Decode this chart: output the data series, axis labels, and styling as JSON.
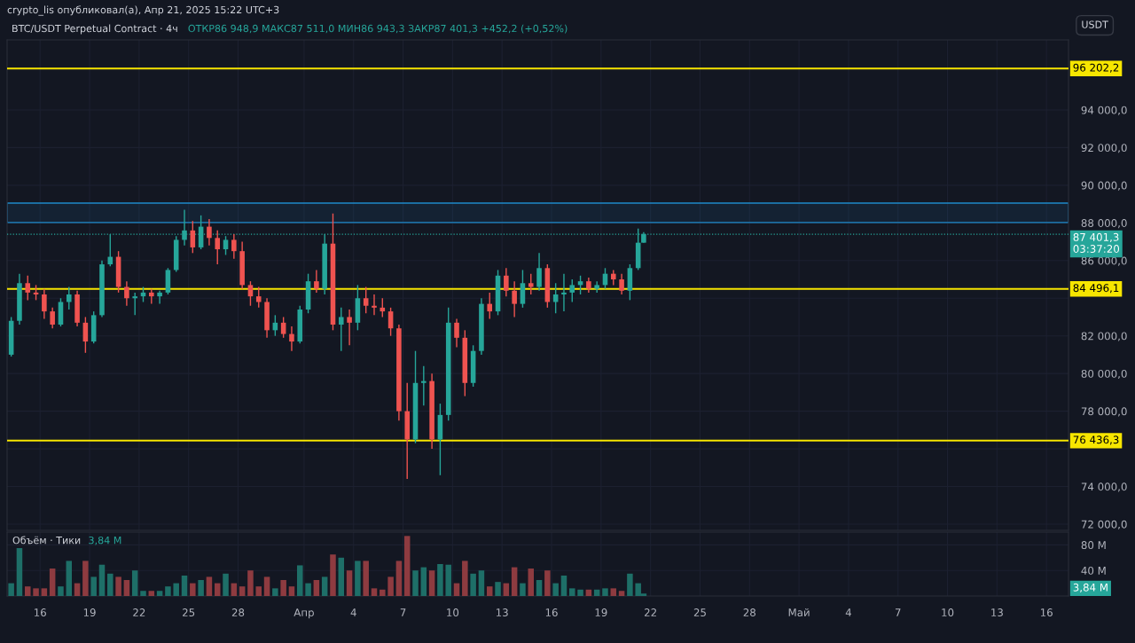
{
  "chart_data": [
    {
      "type": "candlestick",
      "title": "BTC/USDT Perpetual Contract · 4ч",
      "subtitle": "ОТКР86 948,9 МАКС87 511,0 МИН86 943,3 ЗАКР87 401,3 +452,2 (+0,52%)",
      "ylabel": "USDT",
      "annotations": [
        "crypto_lis опубликовал(а), Апр 21, 2025 15:22 UTC+3"
      ],
      "x": [
        "2025-03-14T06:00",
        "2025-03-14T18:00",
        "2025-03-15T06:00",
        "2025-03-15T18:00",
        "2025-03-16T06:00",
        "2025-03-16T18:00",
        "2025-03-17T06:00",
        "2025-03-17T18:00",
        "2025-03-18T06:00",
        "2025-03-18T18:00",
        "2025-03-19T06:00",
        "2025-03-19T18:00",
        "2025-03-20T06:00",
        "2025-03-20T18:00",
        "2025-03-21T06:00",
        "2025-03-21T18:00",
        "2025-03-22T06:00",
        "2025-03-22T18:00",
        "2025-03-23T06:00",
        "2025-03-23T18:00",
        "2025-03-24T06:00",
        "2025-03-24T18:00",
        "2025-03-25T06:00",
        "2025-03-25T18:00",
        "2025-03-26T06:00",
        "2025-03-26T18:00",
        "2025-03-27T06:00",
        "2025-03-27T18:00",
        "2025-03-28T06:00",
        "2025-03-28T18:00",
        "2025-03-29T06:00",
        "2025-03-29T18:00",
        "2025-03-30T06:00",
        "2025-03-30T18:00",
        "2025-03-31T06:00",
        "2025-03-31T18:00",
        "2025-04-01T06:00",
        "2025-04-01T18:00",
        "2025-04-02T06:00",
        "2025-04-02T18:00",
        "2025-04-03T06:00",
        "2025-04-03T18:00",
        "2025-04-04T06:00",
        "2025-04-04T18:00",
        "2025-04-05T06:00",
        "2025-04-05T18:00",
        "2025-04-06T06:00",
        "2025-04-06T18:00",
        "2025-04-07T06:00",
        "2025-04-07T18:00",
        "2025-04-08T06:00",
        "2025-04-08T18:00",
        "2025-04-09T06:00",
        "2025-04-09T18:00",
        "2025-04-10T06:00",
        "2025-04-10T18:00",
        "2025-04-11T06:00",
        "2025-04-11T18:00",
        "2025-04-12T06:00",
        "2025-04-12T18:00",
        "2025-04-13T06:00",
        "2025-04-13T18:00",
        "2025-04-14T06:00",
        "2025-04-14T18:00",
        "2025-04-15T06:00",
        "2025-04-15T18:00",
        "2025-04-16T06:00",
        "2025-04-16T18:00",
        "2025-04-17T06:00",
        "2025-04-17T18:00",
        "2025-04-18T06:00",
        "2025-04-18T18:00",
        "2025-04-19T06:00",
        "2025-04-19T18:00",
        "2025-04-20T06:00",
        "2025-04-20T18:00",
        "2025-04-21T06:00",
        "2025-04-21T14:00"
      ],
      "ohlc": [
        [
          81000,
          83000,
          80900,
          82800
        ],
        [
          82800,
          85300,
          82600,
          84800
        ],
        [
          84800,
          85200,
          83900,
          84300
        ],
        [
          84300,
          84700,
          83900,
          84200
        ],
        [
          84200,
          84500,
          82900,
          83300
        ],
        [
          83300,
          83500,
          82400,
          82600
        ],
        [
          82600,
          84000,
          82500,
          83800
        ],
        [
          83800,
          84600,
          83400,
          84200
        ],
        [
          84200,
          84400,
          82500,
          82700
        ],
        [
          82700,
          83000,
          81100,
          81700
        ],
        [
          81700,
          83300,
          81600,
          83100
        ],
        [
          83100,
          86000,
          83000,
          85800
        ],
        [
          85800,
          87400,
          85700,
          86200
        ],
        [
          86200,
          86500,
          84300,
          84600
        ],
        [
          84600,
          84900,
          83600,
          84000
        ],
        [
          84000,
          84300,
          83100,
          84100
        ],
        [
          84100,
          84600,
          83800,
          84300
        ],
        [
          84300,
          84500,
          83700,
          84100
        ],
        [
          84100,
          84400,
          83700,
          84300
        ],
        [
          84300,
          85600,
          84200,
          85500
        ],
        [
          85500,
          87300,
          85400,
          87100
        ],
        [
          87100,
          88700,
          86800,
          87600
        ],
        [
          87600,
          88100,
          86400,
          86700
        ],
        [
          86700,
          88400,
          86600,
          87800
        ],
        [
          87800,
          88200,
          86800,
          87200
        ],
        [
          87200,
          87600,
          85800,
          86600
        ],
        [
          86600,
          87300,
          86300,
          87100
        ],
        [
          87100,
          87400,
          86100,
          86500
        ],
        [
          86500,
          87000,
          84500,
          84700
        ],
        [
          84700,
          84900,
          83600,
          84100
        ],
        [
          84100,
          84600,
          83500,
          83800
        ],
        [
          83800,
          84000,
          81900,
          82300
        ],
        [
          82300,
          83100,
          82000,
          82700
        ],
        [
          82700,
          83000,
          81900,
          82100
        ],
        [
          82100,
          82500,
          81200,
          81700
        ],
        [
          81700,
          83600,
          81600,
          83400
        ],
        [
          83400,
          85300,
          83200,
          84900
        ],
        [
          84900,
          85500,
          84300,
          84500
        ],
        [
          84500,
          87400,
          84200,
          86900
        ],
        [
          86900,
          88500,
          82300,
          82600
        ],
        [
          82600,
          83500,
          81200,
          83000
        ],
        [
          83000,
          83400,
          81500,
          82700
        ],
        [
          82700,
          84700,
          82300,
          84000
        ],
        [
          84000,
          84600,
          83200,
          83600
        ],
        [
          83600,
          84200,
          83100,
          83500
        ],
        [
          83500,
          84000,
          83000,
          83300
        ],
        [
          83300,
          83500,
          82000,
          82400
        ],
        [
          82400,
          82600,
          77500,
          78000
        ],
        [
          78000,
          79500,
          74400,
          76500
        ],
        [
          76500,
          81200,
          76300,
          79500
        ],
        [
          79500,
          80400,
          78300,
          79600
        ],
        [
          79600,
          80000,
          76000,
          76500
        ],
        [
          76500,
          78400,
          74600,
          77800
        ],
        [
          77800,
          83500,
          77500,
          82700
        ],
        [
          82700,
          82900,
          81400,
          81900
        ],
        [
          81900,
          82300,
          78800,
          79500
        ],
        [
          79500,
          81500,
          79300,
          81200
        ],
        [
          81200,
          84000,
          81000,
          83700
        ],
        [
          83700,
          84300,
          82900,
          83300
        ],
        [
          83300,
          85500,
          83100,
          85200
        ],
        [
          85200,
          85600,
          84100,
          84400
        ],
        [
          84400,
          84900,
          83000,
          83700
        ],
        [
          83700,
          85500,
          83500,
          84800
        ],
        [
          84800,
          85300,
          84200,
          84600
        ],
        [
          84600,
          86400,
          84400,
          85600
        ],
        [
          85600,
          85800,
          83500,
          83800
        ],
        [
          83800,
          84800,
          83200,
          84200
        ],
        [
          84200,
          85300,
          83300,
          84300
        ],
        [
          84300,
          85000,
          83800,
          84700
        ],
        [
          84700,
          85200,
          84200,
          84900
        ],
        [
          84900,
          85100,
          84300,
          84500
        ],
        [
          84500,
          84900,
          84300,
          84700
        ],
        [
          84700,
          85600,
          84500,
          85300
        ],
        [
          85300,
          85500,
          84700,
          85000
        ],
        [
          85000,
          85300,
          84200,
          84400
        ],
        [
          84400,
          85800,
          83900,
          85600
        ],
        [
          85600,
          87700,
          85500,
          86948.9
        ],
        [
          86948.9,
          87511.0,
          86943.3,
          87401.3
        ]
      ],
      "xlim": [
        "2025-03-14T00:00",
        "2025-05-17T08:00"
      ],
      "xticks": [
        "2025-03-16",
        "2025-03-19",
        "2025-03-22",
        "2025-03-25",
        "2025-03-28",
        "2025-04-01",
        "2025-04-04",
        "2025-04-07",
        "2025-04-10",
        "2025-04-13",
        "2025-04-16",
        "2025-04-19",
        "2025-04-22",
        "2025-04-25",
        "2025-04-28",
        "2025-05-01",
        "2025-05-04",
        "2025-05-07",
        "2025-05-10",
        "2025-05-13",
        "2025-05-16"
      ],
      "ylim": [
        71670,
        97720
      ],
      "yticks": [
        {
          "value": 72000,
          "label": "72 000,0"
        },
        {
          "value": 74000,
          "label": "74 000,0"
        },
        {
          "value": 76000,
          "label": null
        },
        {
          "value": 78000,
          "label": "78 000,0"
        },
        {
          "value": 80000,
          "label": "80 000,0"
        },
        {
          "value": 82000,
          "label": "82 000,0"
        },
        {
          "value": 84000,
          "label": null
        },
        {
          "value": 86000,
          "label": "86 000,0"
        },
        {
          "value": 88000,
          "label": "88 000,0"
        },
        {
          "value": 90000,
          "label": "90 000,0"
        },
        {
          "value": 92000,
          "label": "92 000,0"
        },
        {
          "value": 94000,
          "label": "94 000,0"
        }
      ],
      "ref_lines": [
        {
          "axis": "y",
          "value": 96202.2,
          "label": "96 202,2",
          "color": "#f7e600",
          "line_style": "solid"
        },
        {
          "axis": "y",
          "value": 84496.1,
          "label": "84 496,1",
          "color": "#f7e600",
          "line_style": "solid"
        },
        {
          "axis": "y",
          "value": 76436.3,
          "label": "76 436,3",
          "color": "#f7e600",
          "line_style": "solid"
        },
        {
          "axis": "y",
          "value": 87401.3,
          "label": "87 401,3\n03:37:20",
          "color": "#26a69a",
          "line_style": "dotted"
        }
      ],
      "bands": [
        {
          "axis": "y",
          "from": 88020,
          "to": 89050,
          "color": "#1e88c8"
        }
      ],
      "colors": [
        "#26a69a",
        "#26a69a",
        "#ef5350",
        "#ef5350",
        "#ef5350",
        "#ef5350",
        "#26a69a",
        "#26a69a",
        "#ef5350",
        "#ef5350",
        "#26a69a",
        "#26a69a",
        "#26a69a",
        "#ef5350",
        "#ef5350",
        "#26a69a",
        "#26a69a",
        "#ef5350",
        "#26a69a",
        "#26a69a",
        "#26a69a",
        "#26a69a",
        "#ef5350",
        "#26a69a",
        "#ef5350",
        "#ef5350",
        "#26a69a",
        "#ef5350",
        "#ef5350",
        "#ef5350",
        "#ef5350",
        "#ef5350",
        "#26a69a",
        "#ef5350",
        "#ef5350",
        "#26a69a",
        "#26a69a",
        "#ef5350",
        "#26a69a",
        "#ef5350",
        "#26a69a",
        "#ef5350",
        "#26a69a",
        "#ef5350",
        "#ef5350",
        "#ef5350",
        "#ef5350",
        "#ef5350",
        "#ef5350",
        "#26a69a",
        "#26a69a",
        "#ef5350",
        "#26a69a",
        "#26a69a",
        "#ef5350",
        "#ef5350",
        "#26a69a",
        "#26a69a",
        "#ef5350",
        "#26a69a",
        "#ef5350",
        "#ef5350",
        "#26a69a",
        "#ef5350",
        "#26a69a",
        "#ef5350",
        "#26a69a",
        "#26a69a",
        "#26a69a",
        "#26a69a",
        "#ef5350",
        "#26a69a",
        "#26a69a",
        "#ef5350",
        "#ef5350",
        "#26a69a",
        "#26a69a",
        "#26a69a"
      ],
      "grid": true,
      "tick_labels": "y"
    },
    {
      "type": "bar",
      "title": "Объём · Тики",
      "annotations": [
        "3,84 M",
        "3,84 M"
      ],
      "x": [
        "2025-03-14T06:00",
        "2025-03-14T18:00",
        "2025-03-15T06:00",
        "2025-03-15T18:00",
        "2025-03-16T06:00",
        "2025-03-16T18:00",
        "2025-03-17T06:00",
        "2025-03-17T18:00",
        "2025-03-18T06:00",
        "2025-03-18T18:00",
        "2025-03-19T06:00",
        "2025-03-19T18:00",
        "2025-03-20T06:00",
        "2025-03-20T18:00",
        "2025-03-21T06:00",
        "2025-03-21T18:00",
        "2025-03-22T06:00",
        "2025-03-22T18:00",
        "2025-03-23T06:00",
        "2025-03-23T18:00",
        "2025-03-24T06:00",
        "2025-03-24T18:00",
        "2025-03-25T06:00",
        "2025-03-25T18:00",
        "2025-03-26T06:00",
        "2025-03-26T18:00",
        "2025-03-27T06:00",
        "2025-03-27T18:00",
        "2025-03-28T06:00",
        "2025-03-28T18:00",
        "2025-03-29T06:00",
        "2025-03-29T18:00",
        "2025-03-30T06:00",
        "2025-03-30T18:00",
        "2025-03-31T06:00",
        "2025-03-31T18:00",
        "2025-04-01T06:00",
        "2025-04-01T18:00",
        "2025-04-02T06:00",
        "2025-04-02T18:00",
        "2025-04-03T06:00",
        "2025-04-03T18:00",
        "2025-04-04T06:00",
        "2025-04-04T18:00",
        "2025-04-05T06:00",
        "2025-04-05T18:00",
        "2025-04-06T06:00",
        "2025-04-06T18:00",
        "2025-04-07T06:00",
        "2025-04-07T18:00",
        "2025-04-08T06:00",
        "2025-04-08T18:00",
        "2025-04-09T06:00",
        "2025-04-09T18:00",
        "2025-04-10T06:00",
        "2025-04-10T18:00",
        "2025-04-11T06:00",
        "2025-04-11T18:00",
        "2025-04-12T06:00",
        "2025-04-12T18:00",
        "2025-04-13T06:00",
        "2025-04-13T18:00",
        "2025-04-14T06:00",
        "2025-04-14T18:00",
        "2025-04-15T06:00",
        "2025-04-15T18:00",
        "2025-04-16T06:00",
        "2025-04-16T18:00",
        "2025-04-17T06:00",
        "2025-04-17T18:00",
        "2025-04-18T06:00",
        "2025-04-18T18:00",
        "2025-04-19T06:00",
        "2025-04-19T18:00",
        "2025-04-20T06:00",
        "2025-04-20T18:00",
        "2025-04-21T06:00",
        "2025-04-21T14:00"
      ],
      "values": [
        20,
        75,
        15,
        12,
        12,
        43,
        15,
        55,
        20,
        55,
        30,
        49,
        35,
        30,
        25,
        40,
        8,
        8,
        8,
        15,
        20,
        32,
        20,
        25,
        30,
        20,
        35,
        20,
        15,
        40,
        15,
        30,
        12,
        25,
        15,
        48,
        20,
        25,
        30,
        65,
        60,
        40,
        55,
        55,
        12,
        10,
        30,
        55,
        94,
        40,
        45,
        40,
        50,
        49,
        20,
        55,
        35,
        40,
        15,
        22,
        20,
        45,
        20,
        43,
        25,
        40,
        20,
        32,
        12,
        10,
        10,
        10,
        12,
        12,
        8,
        35,
        20,
        3.84
      ],
      "colors": [
        "#1e6f68",
        "#1e6f68",
        "#8e3b40",
        "#8e3b40",
        "#8e3b40",
        "#8e3b40",
        "#1e6f68",
        "#1e6f68",
        "#8e3b40",
        "#8e3b40",
        "#1e6f68",
        "#1e6f68",
        "#1e6f68",
        "#8e3b40",
        "#8e3b40",
        "#1e6f68",
        "#1e6f68",
        "#8e3b40",
        "#1e6f68",
        "#1e6f68",
        "#1e6f68",
        "#1e6f68",
        "#8e3b40",
        "#1e6f68",
        "#8e3b40",
        "#8e3b40",
        "#1e6f68",
        "#8e3b40",
        "#8e3b40",
        "#8e3b40",
        "#8e3b40",
        "#8e3b40",
        "#1e6f68",
        "#8e3b40",
        "#8e3b40",
        "#1e6f68",
        "#1e6f68",
        "#8e3b40",
        "#1e6f68",
        "#8e3b40",
        "#1e6f68",
        "#8e3b40",
        "#1e6f68",
        "#8e3b40",
        "#8e3b40",
        "#8e3b40",
        "#8e3b40",
        "#8e3b40",
        "#8e3b40",
        "#1e6f68",
        "#1e6f68",
        "#8e3b40",
        "#1e6f68",
        "#1e6f68",
        "#8e3b40",
        "#8e3b40",
        "#1e6f68",
        "#1e6f68",
        "#8e3b40",
        "#1e6f68",
        "#8e3b40",
        "#8e3b40",
        "#1e6f68",
        "#8e3b40",
        "#1e6f68",
        "#8e3b40",
        "#1e6f68",
        "#1e6f68",
        "#1e6f68",
        "#1e6f68",
        "#8e3b40",
        "#1e6f68",
        "#1e6f68",
        "#8e3b40",
        "#8e3b40",
        "#1e6f68",
        "#1e6f68",
        "#1e6f68"
      ],
      "xlim": [
        "2025-03-14T00:00",
        "2025-05-17T08:00"
      ],
      "xticks": [
        {
          "value": "2025-03-16",
          "label": "16"
        },
        {
          "value": "2025-03-19",
          "label": "19"
        },
        {
          "value": "2025-03-22",
          "label": "22"
        },
        {
          "value": "2025-03-25",
          "label": "25"
        },
        {
          "value": "2025-03-28",
          "label": "28"
        },
        {
          "value": "2025-04-01",
          "label": "Апр"
        },
        {
          "value": "2025-04-04",
          "label": "4"
        },
        {
          "value": "2025-04-07",
          "label": "7"
        },
        {
          "value": "2025-04-10",
          "label": "10"
        },
        {
          "value": "2025-04-13",
          "label": "13"
        },
        {
          "value": "2025-04-16",
          "label": "16"
        },
        {
          "value": "2025-04-19",
          "label": "19"
        },
        {
          "value": "2025-04-22",
          "label": "22"
        },
        {
          "value": "2025-04-25",
          "label": "25"
        },
        {
          "value": "2025-04-28",
          "label": "28"
        },
        {
          "value": "2025-05-01",
          "label": "Май"
        },
        {
          "value": "2025-05-04",
          "label": "4"
        },
        {
          "value": "2025-05-07",
          "label": "7"
        },
        {
          "value": "2025-05-10",
          "label": "10"
        },
        {
          "value": "2025-05-13",
          "label": "13"
        },
        {
          "value": "2025-05-16",
          "label": "16"
        }
      ],
      "ylim": [
        0,
        100
      ],
      "yticks": [
        {
          "value": 40,
          "label": "40 M"
        },
        {
          "value": 80,
          "label": "80 M"
        }
      ],
      "grid": true
    }
  ]
}
